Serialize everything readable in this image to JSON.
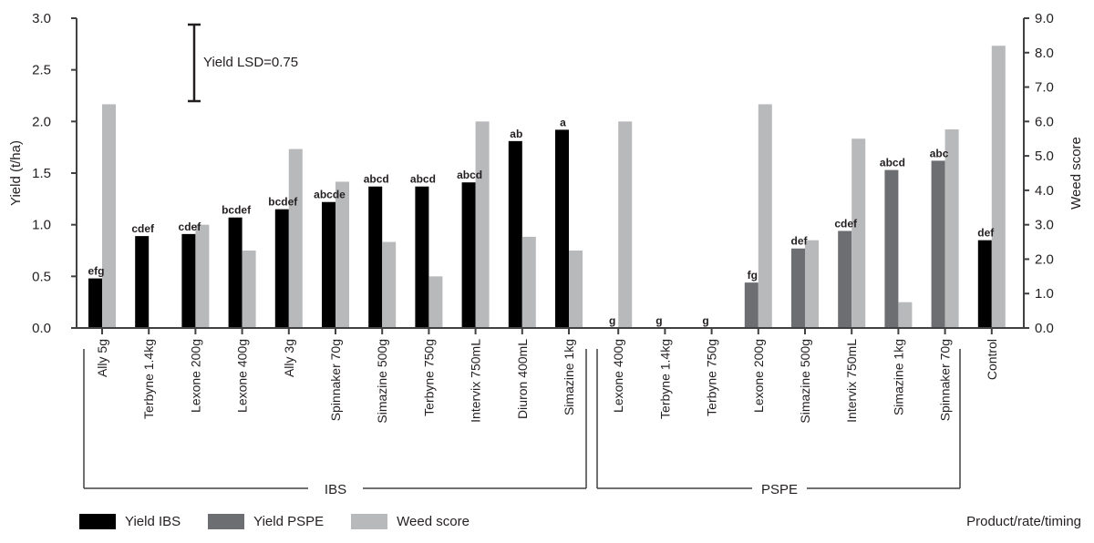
{
  "chart_data": {
    "type": "bar",
    "title": "",
    "xlabel": "Product/rate/timing",
    "ylabel": "Yield (t/ha)",
    "ylabel_right": "Weed score",
    "ylim": [
      0,
      3.0
    ],
    "ylim_right": [
      0,
      9.0
    ],
    "yticks": [
      "0.0",
      "0.5",
      "1.0",
      "1.5",
      "2.0",
      "2.5",
      "3.0"
    ],
    "yticks_right": [
      "0.0",
      "1.0",
      "2.0",
      "3.0",
      "4.0",
      "5.0",
      "6.0",
      "7.0",
      "8.0",
      "9.0"
    ],
    "annotation": "Yield LSD=0.75",
    "groups": [
      {
        "label": "IBS",
        "start": 0,
        "end": 10
      },
      {
        "label": "PSPE",
        "start": 11,
        "end": 18
      }
    ],
    "categories": [
      "Ally 5g",
      "Terbyne 1.4kg",
      "Lexone 200g",
      "Lexone 400g",
      "Ally 3g",
      "Spinnaker 70g",
      "Simazine 500g",
      "Terbyne 750g",
      "Intervix 750mL",
      "Diuron 400mL",
      "Simazine 1kg",
      "Lexone 400g",
      "Terbyne 1.4kg",
      "Terbyne 750g",
      "Lexone 200g",
      "Simazine 500g",
      "Intervix 750mL",
      "Simazine 1kg",
      "Spinnaker 70g",
      "Control"
    ],
    "series": [
      {
        "name": "Yield IBS",
        "axis": "left",
        "color": "#000000",
        "values": [
          0.48,
          0.89,
          0.91,
          1.07,
          1.15,
          1.22,
          1.37,
          1.37,
          1.41,
          1.81,
          1.92,
          null,
          null,
          null,
          null,
          null,
          null,
          null,
          null,
          0.85
        ]
      },
      {
        "name": "Yield PSPE",
        "axis": "left",
        "color": "#6d6e71",
        "values": [
          null,
          null,
          null,
          null,
          null,
          null,
          null,
          null,
          null,
          null,
          null,
          0.0,
          0.0,
          0.0,
          0.44,
          0.77,
          0.94,
          1.53,
          1.62,
          null
        ]
      },
      {
        "name": "Weed score",
        "axis": "right",
        "color": "#b8b9bb",
        "values": [
          6.5,
          0,
          3.0,
          2.25,
          5.2,
          4.25,
          2.5,
          1.5,
          6.0,
          2.65,
          2.25,
          6.0,
          0,
          0,
          6.5,
          2.55,
          5.5,
          0.75,
          5.77,
          8.2
        ]
      }
    ],
    "significance_letters": [
      "efg",
      "cdef",
      "cdef",
      "bcdef",
      "bcdef",
      "abcde",
      "abcd",
      "abcd",
      "abcd",
      "ab",
      "a",
      "g",
      "g",
      "g",
      "fg",
      "def",
      "cdef",
      "abcd",
      "abc",
      "def"
    ],
    "legend_position": "bottom-left",
    "grid": false
  },
  "legend": [
    {
      "label": "Yield IBS",
      "color": "#000000"
    },
    {
      "label": "Yield PSPE",
      "color": "#6d6e71"
    },
    {
      "label": "Weed score",
      "color": "#b8b9bb"
    }
  ],
  "axis": {
    "x_title": "Product/rate/timing",
    "lsd_label": "Yield LSD=0.75"
  }
}
